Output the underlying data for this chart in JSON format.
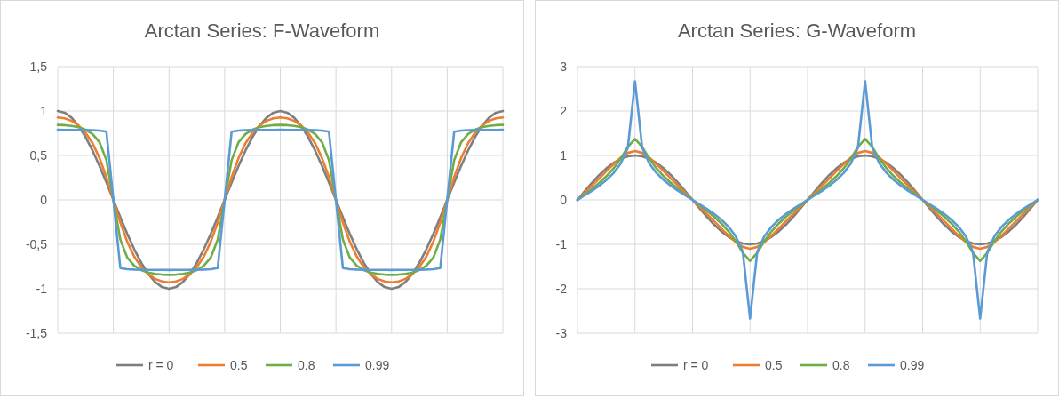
{
  "chart_data": [
    {
      "type": "line",
      "title": "Arctan Series: F-Waveform",
      "categories": [
        null,
        null,
        null,
        null,
        null,
        null,
        null,
        null,
        null,
        null,
        null,
        null,
        null,
        null,
        null,
        null,
        null,
        null,
        null,
        null,
        null,
        null,
        null,
        null,
        null,
        null,
        null,
        null,
        null,
        null,
        null,
        null,
        null,
        null,
        null,
        null,
        null,
        null,
        null,
        null,
        null,
        null,
        null,
        null,
        null,
        null,
        null,
        null,
        null,
        null,
        null,
        null,
        null,
        null,
        null,
        null,
        null,
        null,
        null,
        null,
        null,
        null,
        null,
        null,
        null
      ],
      "ylim": [
        -1.5,
        1.5
      ],
      "yticks": [
        {
          "value": -1.5,
          "label": "-1,5"
        },
        -1,
        {
          "value": -0.5,
          "label": "-0,5"
        },
        0,
        {
          "value": 0.5,
          "label": "0,5"
        },
        1,
        {
          "value": 1.5,
          "label": "1,5"
        }
      ],
      "tick_labels": "y",
      "grid": true,
      "legend": "bottom",
      "series": [
        {
          "name": "r = 0",
          "color": "#7f7f7f",
          "values": [
            1,
            0.9808,
            0.9239,
            0.8315,
            0.7071,
            0.5556,
            0.3827,
            0.1951,
            0,
            -0.1951,
            -0.3827,
            -0.5556,
            -0.7071,
            -0.8315,
            -0.9239,
            -0.9808,
            -1,
            -0.9808,
            -0.9239,
            -0.8315,
            -0.7071,
            -0.5556,
            -0.3827,
            -0.1951,
            0,
            0.1951,
            0.3827,
            0.5556,
            0.7071,
            0.8315,
            0.9239,
            0.9808,
            1,
            0.9808,
            0.9239,
            0.8315,
            0.7071,
            0.5556,
            0.3827,
            0.1951,
            0,
            -0.1951,
            -0.3827,
            -0.5556,
            -0.7071,
            -0.8315,
            -0.9239,
            -0.9808,
            -1,
            -0.9808,
            -0.9239,
            -0.8315,
            -0.7071,
            -0.5556,
            -0.3827,
            -0.1951,
            0,
            0.1951,
            0.3827,
            0.5556,
            0.7071,
            0.8315,
            0.9239,
            0.9808,
            1
          ]
        },
        {
          "name": "0.5",
          "color": "#ed7d31",
          "values": [
            0.9273,
            0.9181,
            0.8889,
            0.8369,
            0.7559,
            0.6376,
            0.4718,
            0.2545,
            0,
            -0.2545,
            -0.4718,
            -0.6376,
            -0.7559,
            -0.8369,
            -0.8889,
            -0.9181,
            -0.9273,
            -0.9181,
            -0.8889,
            -0.8369,
            -0.7559,
            -0.6376,
            -0.4718,
            -0.2545,
            0,
            0.2545,
            0.4718,
            0.6376,
            0.7559,
            0.8369,
            0.8889,
            0.9181,
            0.9273,
            0.9181,
            0.8889,
            0.8369,
            0.7559,
            0.6376,
            0.4718,
            0.2545,
            0,
            -0.2545,
            -0.4718,
            -0.6376,
            -0.7559,
            -0.8369,
            -0.8889,
            -0.9181,
            -0.9273,
            -0.9181,
            -0.8889,
            -0.8369,
            -0.7559,
            -0.6376,
            -0.4718,
            -0.2545,
            0,
            0.2545,
            0.4718,
            0.6376,
            0.7559,
            0.8369,
            0.8889,
            0.9181,
            0.9273
          ]
        },
        {
          "name": "0.8",
          "color": "#70ad47",
          "values": [
            0.8434,
            0.8408,
            0.8324,
            0.8166,
            0.7891,
            0.7411,
            0.6495,
            0.4464,
            0,
            -0.4464,
            -0.6495,
            -0.7411,
            -0.7891,
            -0.8166,
            -0.8324,
            -0.8408,
            -0.8434,
            -0.8408,
            -0.8324,
            -0.8166,
            -0.7891,
            -0.7411,
            -0.6495,
            -0.4464,
            0,
            0.4464,
            0.6495,
            0.7411,
            0.7891,
            0.8166,
            0.8324,
            0.8408,
            0.8434,
            0.8408,
            0.8324,
            0.8166,
            0.7891,
            0.7411,
            0.6495,
            0.4464,
            0,
            -0.4464,
            -0.6495,
            -0.7411,
            -0.7891,
            -0.8166,
            -0.8324,
            -0.8408,
            -0.8434,
            -0.8408,
            -0.8324,
            -0.8166,
            -0.7891,
            -0.7411,
            -0.6495,
            -0.4464,
            0,
            0.4464,
            0.6495,
            0.7411,
            0.7891,
            0.8166,
            0.8324,
            0.8408,
            0.8434
          ]
        },
        {
          "name": "0.99",
          "color": "#5b9bd5",
          "values": [
            0.7883,
            0.7882,
            0.7878,
            0.7872,
            0.7861,
            0.7842,
            0.7801,
            0.7673,
            0,
            -0.7673,
            -0.7801,
            -0.7842,
            -0.7861,
            -0.7872,
            -0.7878,
            -0.7882,
            -0.7883,
            -0.7882,
            -0.7878,
            -0.7872,
            -0.7861,
            -0.7842,
            -0.7801,
            -0.7673,
            0,
            0.7673,
            0.7801,
            0.7842,
            0.7861,
            0.7872,
            0.7878,
            0.7882,
            0.7883,
            0.7882,
            0.7878,
            0.7872,
            0.7861,
            0.7842,
            0.7801,
            0.7673,
            0,
            -0.7673,
            -0.7801,
            -0.7842,
            -0.7861,
            -0.7872,
            -0.7878,
            -0.7882,
            -0.7883,
            -0.7882,
            -0.7878,
            -0.7872,
            -0.7861,
            -0.7842,
            -0.7801,
            -0.7673,
            0,
            0.7673,
            0.7801,
            0.7842,
            0.7861,
            0.7872,
            0.7878,
            0.7882,
            0.7883
          ]
        }
      ]
    },
    {
      "type": "line",
      "title": "Arctan Series: G-Waveform",
      "categories": [
        null,
        null,
        null,
        null,
        null,
        null,
        null,
        null,
        null,
        null,
        null,
        null,
        null,
        null,
        null,
        null,
        null,
        null,
        null,
        null,
        null,
        null,
        null,
        null,
        null,
        null,
        null,
        null,
        null,
        null,
        null,
        null,
        null,
        null,
        null,
        null,
        null,
        null,
        null,
        null,
        null,
        null,
        null,
        null,
        null,
        null,
        null,
        null,
        null,
        null,
        null,
        null,
        null,
        null,
        null,
        null,
        null,
        null,
        null,
        null,
        null,
        null,
        null,
        null,
        null
      ],
      "ylim": [
        -3,
        3
      ],
      "yticks": [
        -3,
        -2,
        -1,
        0,
        1,
        2,
        3
      ],
      "tick_labels": "y",
      "grid": true,
      "legend": "bottom",
      "series": [
        {
          "name": "r = 0",
          "color": "#7f7f7f",
          "values": [
            0,
            0.1951,
            0.3827,
            0.5556,
            0.7071,
            0.8315,
            0.9239,
            0.9808,
            1,
            0.9808,
            0.9239,
            0.8315,
            0.7071,
            0.5556,
            0.3827,
            0.1951,
            0,
            -0.1951,
            -0.3827,
            -0.5556,
            -0.7071,
            -0.8315,
            -0.9239,
            -0.9808,
            -1,
            -0.9808,
            -0.9239,
            -0.8315,
            -0.7071,
            -0.5556,
            -0.3827,
            -0.1951,
            0,
            0.1951,
            0.3827,
            0.5556,
            0.7071,
            0.8315,
            0.9239,
            0.9808,
            1,
            0.9808,
            0.9239,
            0.8315,
            0.7071,
            0.5556,
            0.3827,
            0.1951,
            0,
            -0.1951,
            -0.3827,
            -0.5556,
            -0.7071,
            -0.8315,
            -0.9239,
            -0.9808,
            -1,
            -0.9808,
            -0.9239,
            -0.8315,
            -0.7071,
            -0.5556,
            -0.3827,
            -0.1951,
            0
          ]
        },
        {
          "name": "0.5",
          "color": "#ed7d31",
          "values": [
            0,
            0.1574,
            0.3163,
            0.4778,
            0.6412,
            0.802,
            0.9485,
            1.0574,
            1.0986,
            1.0574,
            0.9485,
            0.802,
            0.6412,
            0.4778,
            0.3163,
            0.1574,
            0,
            -0.1574,
            -0.3163,
            -0.4778,
            -0.6412,
            -0.802,
            -0.9485,
            -1.0574,
            -1.0986,
            -1.0574,
            -0.9485,
            -0.802,
            -0.6412,
            -0.4778,
            -0.3163,
            -0.1574,
            0,
            0.1574,
            0.3163,
            0.4778,
            0.6412,
            0.802,
            0.9485,
            1.0574,
            1.0986,
            1.0574,
            0.9485,
            0.802,
            0.6412,
            0.4778,
            0.3163,
            0.1574,
            0,
            -0.1574,
            -0.3163,
            -0.4778,
            -0.6412,
            -0.802,
            -0.9485,
            -1.0574,
            -1.0986,
            -1.0574,
            -0.9485,
            -0.802,
            -0.6412,
            -0.4778,
            -0.3163,
            -0.1574,
            0
          ]
        },
        {
          "name": "0.8",
          "color": "#70ad47",
          "values": [
            0,
            0.1204,
            0.2452,
            0.3794,
            0.5298,
            0.7066,
            0.9246,
            1.1921,
            1.3733,
            1.1921,
            0.9246,
            0.7066,
            0.5298,
            0.3794,
            0.2452,
            0.1204,
            0,
            -0.1204,
            -0.2452,
            -0.3794,
            -0.5298,
            -0.7066,
            -0.9246,
            -1.1921,
            -1.3733,
            -1.1921,
            -0.9246,
            -0.7066,
            -0.5298,
            -0.3794,
            -0.2452,
            -0.1204,
            0,
            0.1204,
            0.2452,
            0.3794,
            0.5298,
            0.7066,
            0.9246,
            1.1921,
            1.3733,
            1.1921,
            0.9246,
            0.7066,
            0.5298,
            0.3794,
            0.2452,
            0.1204,
            0,
            -0.1204,
            -0.2452,
            -0.3794,
            -0.5298,
            -0.7066,
            -0.9246,
            -1.1921,
            -1.3733,
            -1.1921,
            -0.9246,
            -0.7066,
            -0.5298,
            -0.3794,
            -0.2452,
            -0.1204,
            0
          ]
        },
        {
          "name": "0.99",
          "color": "#5b9bd5",
          "values": [
            0,
            0.0998,
            0.2036,
            0.3163,
            0.4451,
            0.6024,
            0.8154,
            1.17,
            2.671,
            1.17,
            0.8154,
            0.6024,
            0.4451,
            0.3163,
            0.2036,
            0.0998,
            0,
            -0.0998,
            -0.2036,
            -0.3163,
            -0.4451,
            -0.6024,
            -0.8154,
            -1.17,
            -2.671,
            -1.17,
            -0.8154,
            -0.6024,
            -0.4451,
            -0.3163,
            -0.2036,
            -0.0998,
            0,
            0.0998,
            0.2036,
            0.3163,
            0.4451,
            0.6024,
            0.8154,
            1.17,
            2.671,
            1.17,
            0.8154,
            0.6024,
            0.4451,
            0.3163,
            0.2036,
            0.0998,
            0,
            -0.0998,
            -0.2036,
            -0.3163,
            -0.4451,
            -0.6024,
            -0.8154,
            -1.17,
            -2.671,
            -1.17,
            -0.8154,
            -0.6024,
            -0.4451,
            -0.3163,
            -0.2036,
            -0.0998,
            0
          ]
        }
      ]
    }
  ]
}
